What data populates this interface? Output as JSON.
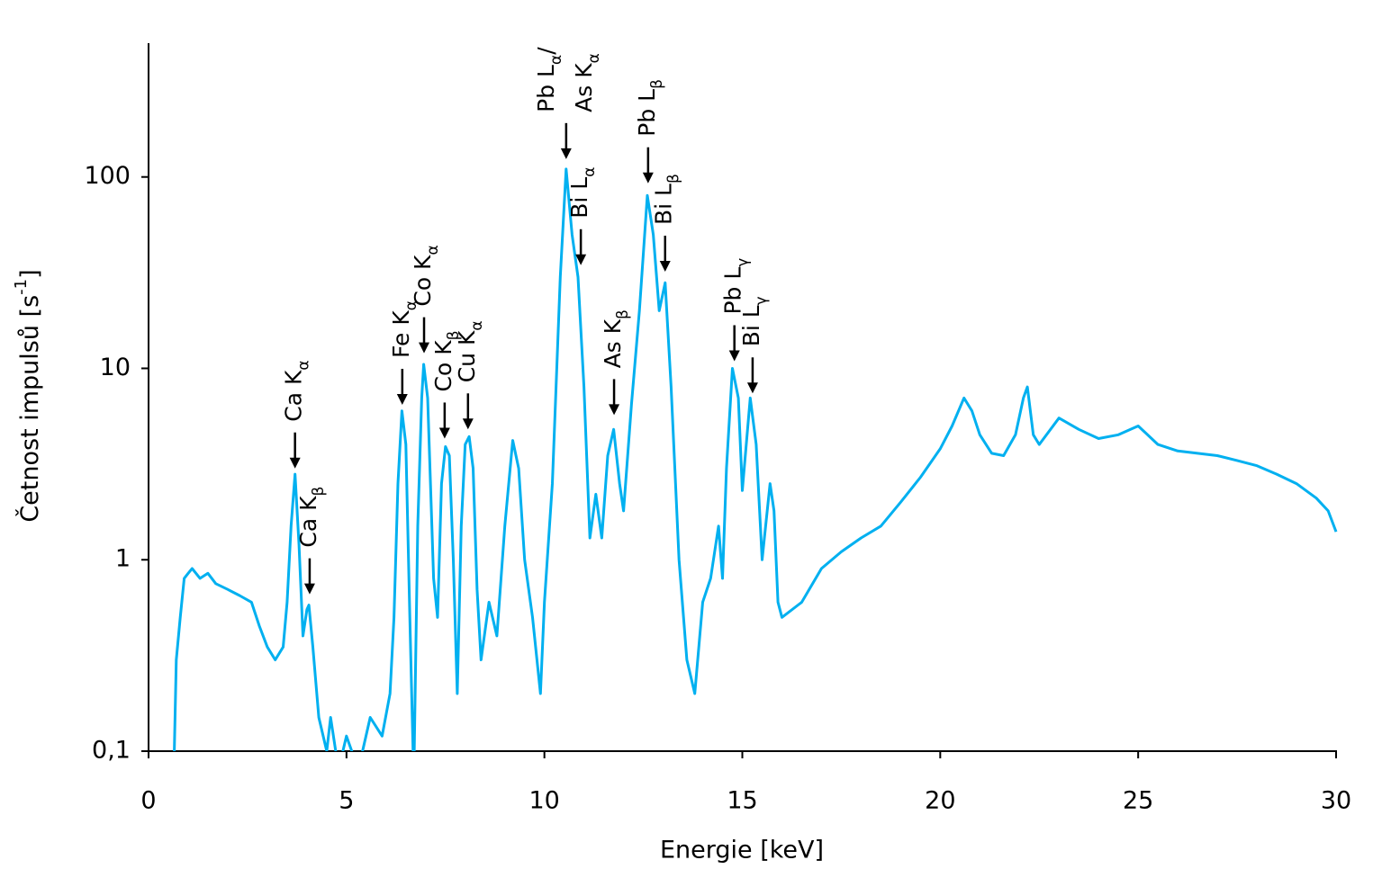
{
  "chart_data": {
    "type": "line",
    "xlabel": "Energie [keV]",
    "ylabel": [
      "Četnost impulsů [s",
      "-1",
      "]"
    ],
    "xlim": [
      0,
      30
    ],
    "xticks": [
      0,
      5,
      10,
      15,
      20,
      25,
      30
    ],
    "ylim": [
      0.1,
      500
    ],
    "yticks": [
      {
        "value": 0.1,
        "label": "0,1"
      },
      1,
      10,
      100
    ],
    "log_y": true,
    "grid": false,
    "series": [
      {
        "color": "#00b0f0",
        "x": [
          0.65,
          0.7,
          0.8,
          0.9,
          1.0,
          1.1,
          1.3,
          1.5,
          1.7,
          2.0,
          2.3,
          2.6,
          2.8,
          3.0,
          3.2,
          3.4,
          3.5,
          3.6,
          3.7,
          3.8,
          3.9,
          4.0,
          4.05,
          4.15,
          4.3,
          4.5,
          4.6,
          4.8,
          5.0,
          5.3,
          5.6,
          5.9,
          6.1,
          6.2,
          6.3,
          6.4,
          6.5,
          6.6,
          6.7,
          6.8,
          6.9,
          6.95,
          7.05,
          7.2,
          7.3,
          7.4,
          7.5,
          7.6,
          7.7,
          7.8,
          7.9,
          8.0,
          8.1,
          8.2,
          8.3,
          8.4,
          8.6,
          8.8,
          9.0,
          9.2,
          9.35,
          9.5,
          9.7,
          9.9,
          10.0,
          10.2,
          10.4,
          10.55,
          10.7,
          10.85,
          11.0,
          11.15,
          11.3,
          11.45,
          11.6,
          11.75,
          11.9,
          12.0,
          12.2,
          12.4,
          12.6,
          12.75,
          12.9,
          13.05,
          13.2,
          13.4,
          13.6,
          13.8,
          14.0,
          14.2,
          14.4,
          14.5,
          14.6,
          14.75,
          14.9,
          15.0,
          15.2,
          15.35,
          15.5,
          15.7,
          15.8,
          15.9,
          16.0,
          16.5,
          17,
          17.5,
          18,
          18.5,
          19,
          19.5,
          20,
          20.3,
          20.6,
          20.8,
          21.0,
          21.3,
          21.6,
          21.9,
          22.1,
          22.2,
          22.35,
          22.5,
          23,
          23.5,
          24,
          24.5,
          25,
          25.5,
          26,
          26.5,
          27,
          27.5,
          28,
          28.5,
          29,
          29.5,
          29.8,
          30
        ],
        "values": [
          0.1,
          0.3,
          0.5,
          0.8,
          0.85,
          0.9,
          0.8,
          0.85,
          0.75,
          0.7,
          0.65,
          0.6,
          0.45,
          0.35,
          0.3,
          0.35,
          0.6,
          1.5,
          2.8,
          1.2,
          0.4,
          0.55,
          0.58,
          0.35,
          0.15,
          0.1,
          0.15,
          0.08,
          0.12,
          0.08,
          0.15,
          0.12,
          0.2,
          0.5,
          2.5,
          6,
          4,
          0.5,
          0.07,
          1.5,
          7,
          10.5,
          7,
          0.8,
          0.5,
          2.5,
          3.9,
          3.5,
          1.0,
          0.2,
          1.5,
          4,
          4.4,
          3,
          0.7,
          0.3,
          0.6,
          0.4,
          1.5,
          4.2,
          3,
          1.0,
          0.5,
          0.2,
          0.6,
          2.5,
          30,
          110,
          50,
          30,
          8,
          1.3,
          2.2,
          1.3,
          3.5,
          4.8,
          2.5,
          1.8,
          6.5,
          20,
          80,
          50,
          20,
          28,
          8,
          1.0,
          0.3,
          0.2,
          0.6,
          0.8,
          1.5,
          0.8,
          3,
          10,
          7,
          2.3,
          7,
          4,
          1.0,
          2.5,
          1.8,
          0.6,
          0.5,
          0.6,
          0.9,
          1.1,
          1.3,
          1.5,
          2.0,
          2.7,
          3.8,
          5,
          7,
          6,
          4.5,
          3.6,
          3.5,
          4.5,
          7,
          8,
          4.5,
          4,
          5.5,
          4.8,
          4.3,
          4.5,
          5,
          4,
          3.7,
          3.6,
          3.5,
          3.3,
          3.1,
          2.8,
          2.5,
          2.1,
          1.8,
          1.4
        ]
      }
    ],
    "annotations": [
      {
        "x": 3.7,
        "y": 3.0,
        "lines": [
          [
            "Ca K",
            "α"
          ]
        ]
      },
      {
        "x": 4.07,
        "y": 0.66,
        "lines": [
          [
            "Ca K",
            "β"
          ]
        ]
      },
      {
        "x": 6.41,
        "y": 6.45,
        "lines": [
          [
            "Fe K",
            "α"
          ]
        ]
      },
      {
        "x": 6.96,
        "y": 12,
        "lines": [
          [
            "Co K",
            "α"
          ]
        ]
      },
      {
        "x": 7.48,
        "y": 4.3,
        "lines": [
          [
            "Co K",
            "β"
          ]
        ]
      },
      {
        "x": 8.07,
        "y": 4.8,
        "lines": [
          [
            "Cu K",
            "α"
          ]
        ]
      },
      {
        "x": 10.55,
        "y": 124,
        "lines": [
          [
            "Pb L",
            "α",
            "/"
          ],
          [
            "As K",
            "α"
          ]
        ]
      },
      {
        "x": 10.92,
        "y": 34.6,
        "lines": [
          [
            "Bi L",
            "α"
          ]
        ]
      },
      {
        "x": 11.76,
        "y": 5.7,
        "lines": [
          [
            "As K",
            "β"
          ]
        ]
      },
      {
        "x": 12.62,
        "y": 92.7,
        "lines": [
          [
            "Pb L",
            "β"
          ]
        ]
      },
      {
        "x": 13.05,
        "y": 32,
        "lines": [
          [
            "Bi L",
            "β"
          ]
        ]
      },
      {
        "x": 14.8,
        "y": 10.9,
        "lines": [
          [
            "Pb L",
            "γ"
          ]
        ]
      },
      {
        "x": 15.26,
        "y": 7.4,
        "lines": [
          [
            "Bi L",
            "γ"
          ]
        ]
      }
    ]
  }
}
